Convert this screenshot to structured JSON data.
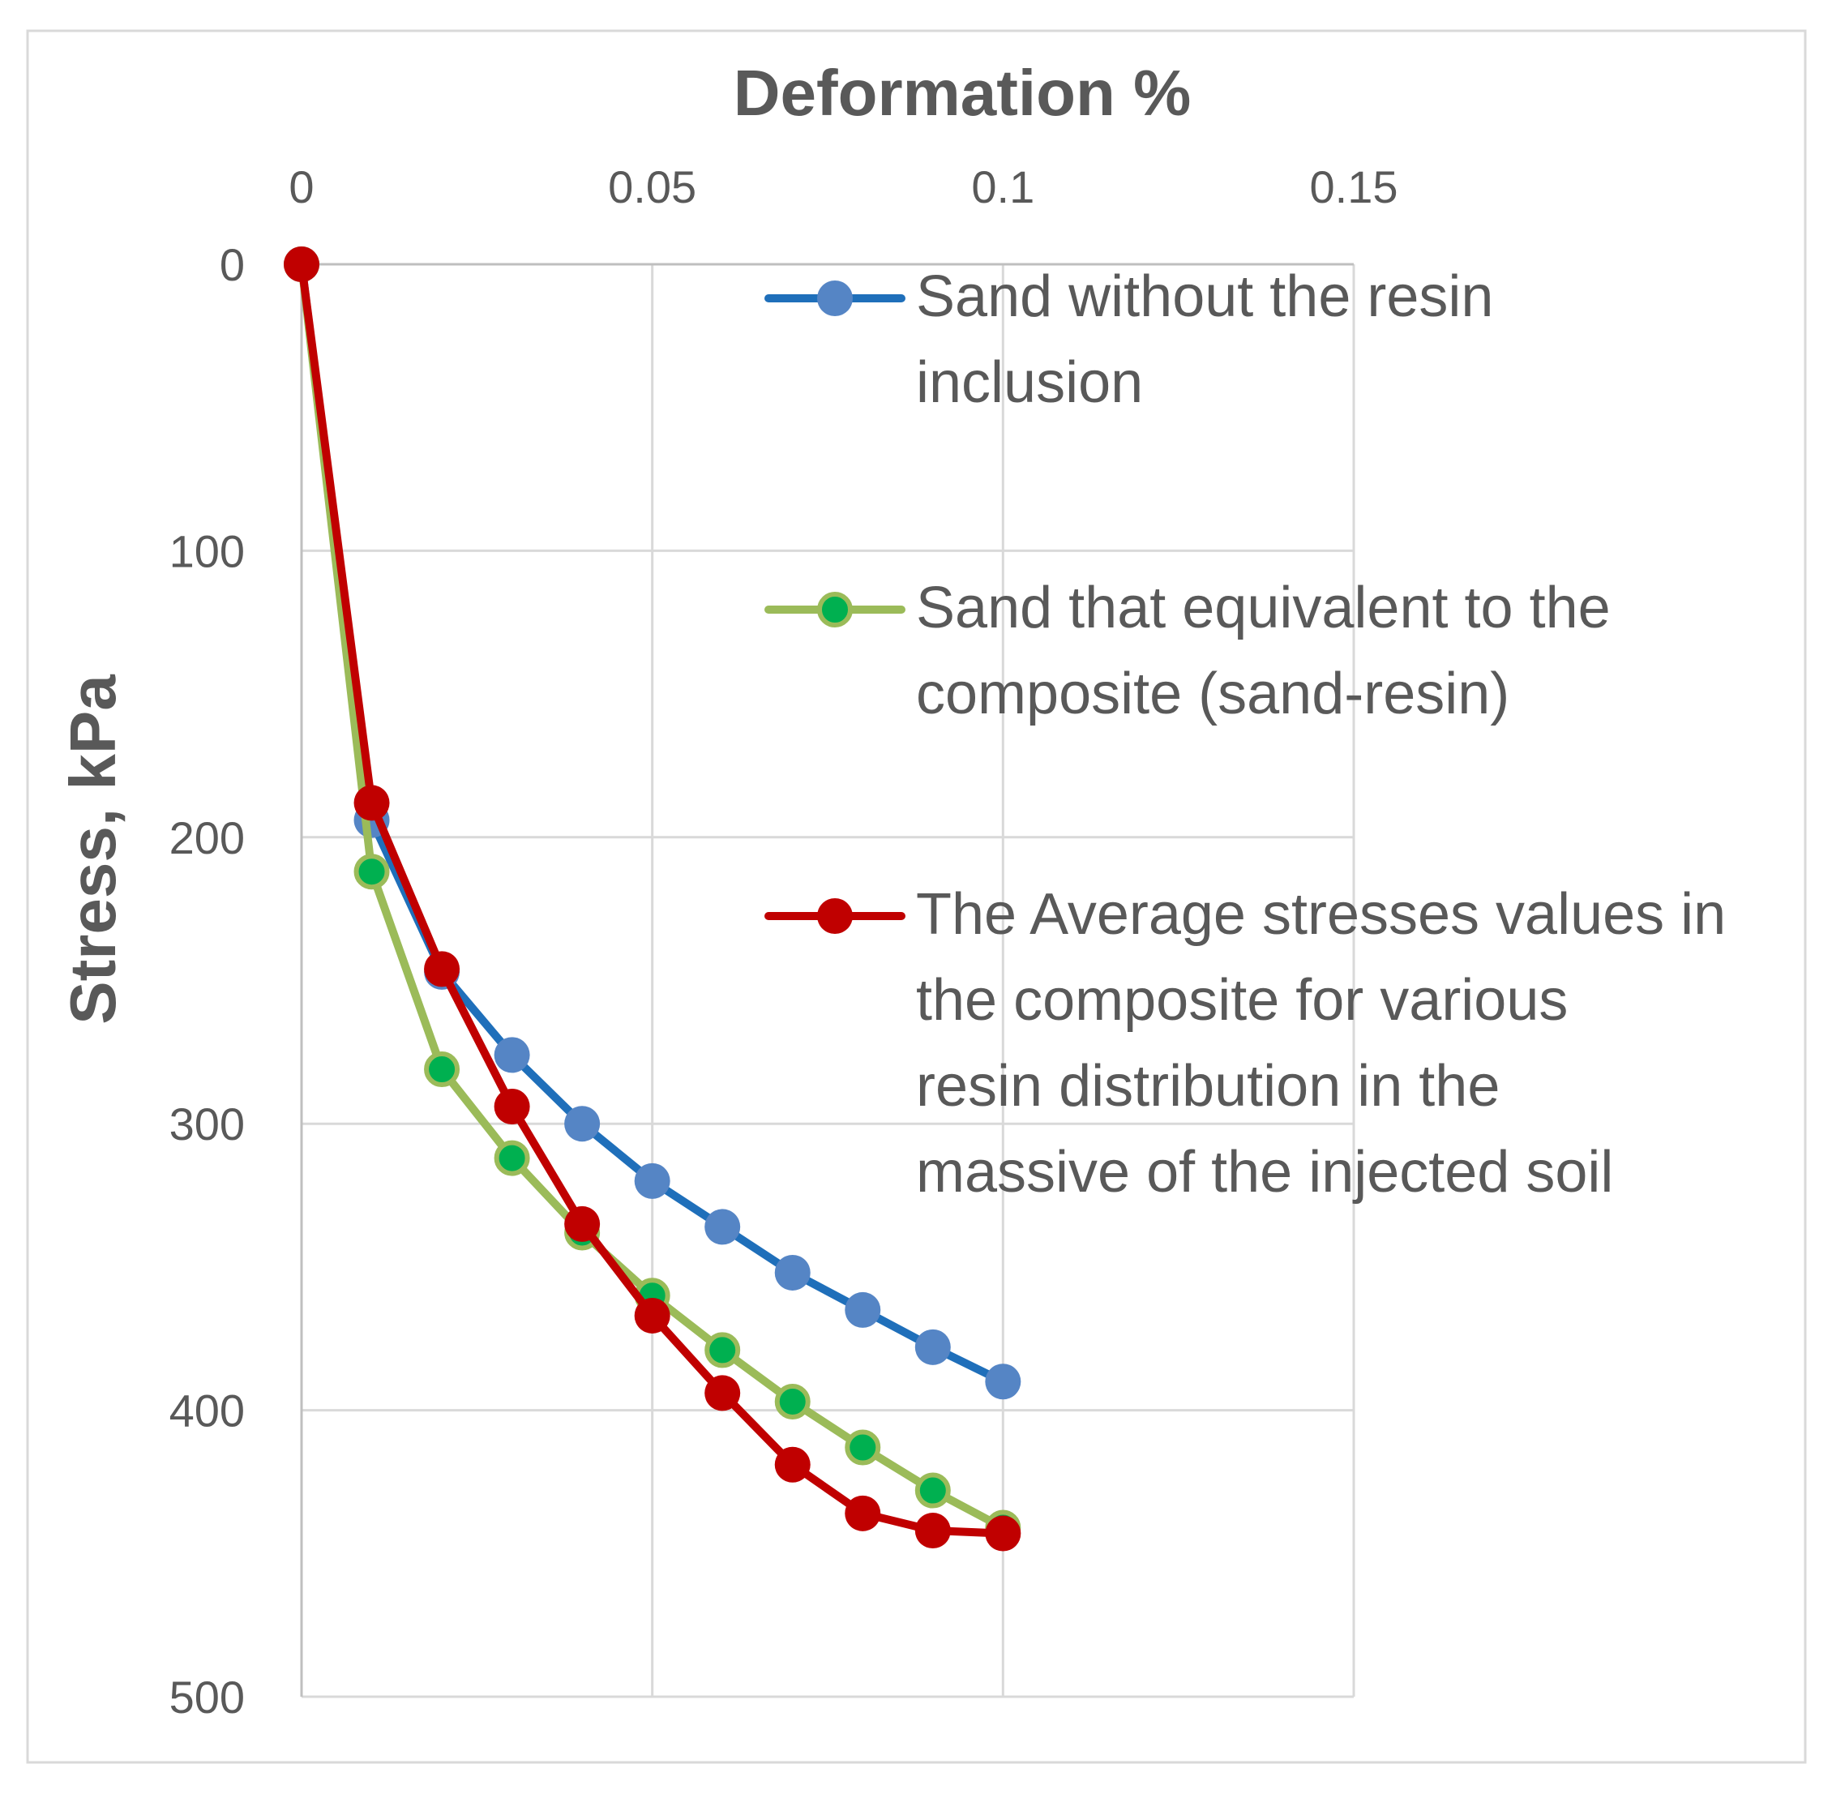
{
  "chart_data": {
    "type": "line",
    "title": "Deformation %",
    "xlabel": "Deformation %",
    "ylabel": "Stress, kPa",
    "x_axis_position": "top",
    "y_axis_inverted": true,
    "xlim": [
      0,
      0.15
    ],
    "ylim": [
      0,
      500
    ],
    "x_ticks": [
      0,
      0.05,
      0.1,
      0.15
    ],
    "x_tick_labels": [
      "0",
      "0.05",
      "0.1",
      "0.15"
    ],
    "y_ticks": [
      0,
      100,
      200,
      300,
      400,
      500
    ],
    "y_tick_labels": [
      "0",
      "100",
      "200",
      "300",
      "400",
      "500"
    ],
    "grid": true,
    "legend_position": "top-right",
    "x": [
      0,
      0.01,
      0.02,
      0.03,
      0.04,
      0.05,
      0.06,
      0.07,
      0.08,
      0.09,
      0.1
    ],
    "series": [
      {
        "name": "Sand without the resin inclusion",
        "legend_lines": [
          "Sand without the resin",
          "inclusion"
        ],
        "line_color": "#1f6fba",
        "marker_color": "#5585c5",
        "values": [
          0,
          194,
          247,
          276,
          300,
          320,
          336,
          352,
          365,
          378,
          390
        ]
      },
      {
        "name": "Sand that equivalent to the composite (sand-resin)",
        "legend_lines": [
          "Sand that equivalent to the",
          "composite (sand-resin)"
        ],
        "line_color": "#9bbb59",
        "marker_color": "#00b050",
        "values": [
          0,
          212,
          281,
          312,
          338,
          360,
          379,
          397,
          413,
          428,
          441
        ]
      },
      {
        "name": "The Average stresses values in the composite for various resin distribution in the massive of the injected soil",
        "legend_lines": [
          "The Average stresses values in",
          "the composite for various",
          "resin distribution in the",
          "massive of the injected soil"
        ],
        "line_color": "#c00000",
        "marker_color": "#c00000",
        "values": [
          0,
          188,
          246,
          294,
          335,
          367,
          394,
          419,
          436,
          442,
          443
        ]
      }
    ]
  },
  "colors": {
    "grid": "#d9d9d9",
    "axis": "#bfbfbf",
    "text": "#595959",
    "border": "#d9d9d9"
  }
}
